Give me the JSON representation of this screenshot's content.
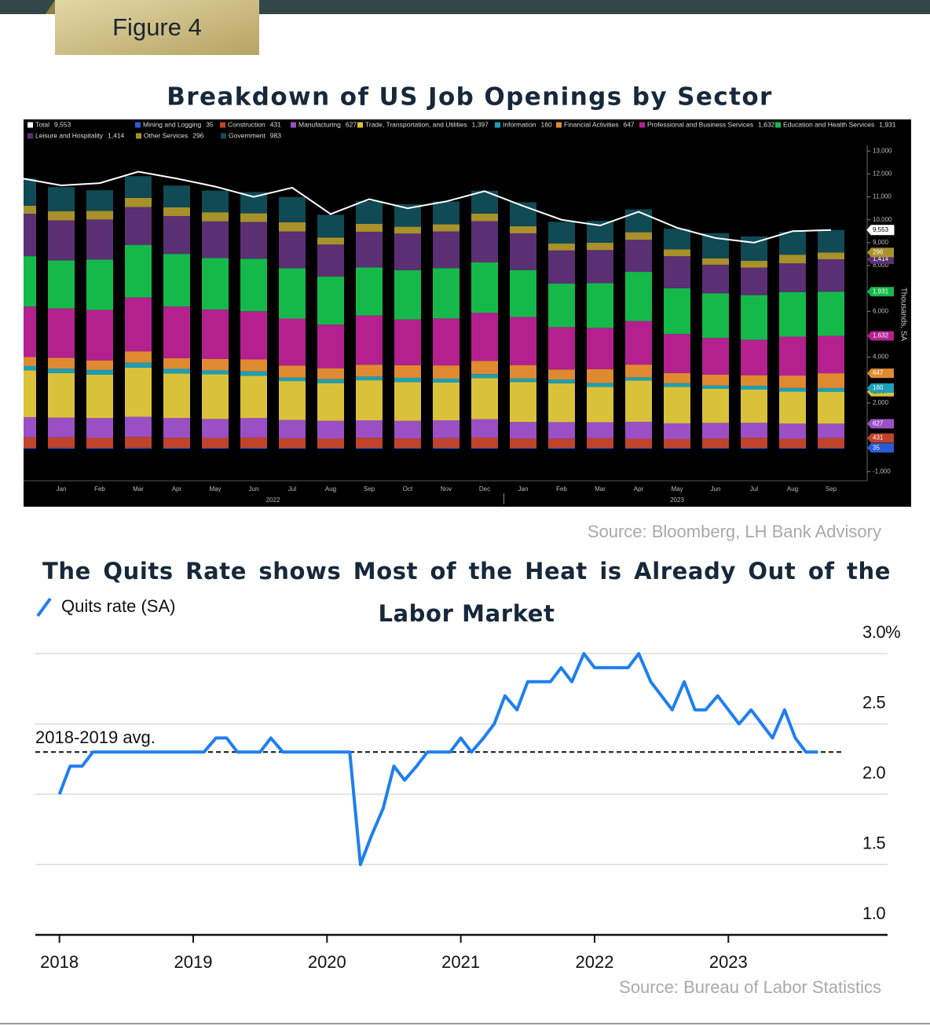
{
  "header": {
    "figure_label": "Figure 4"
  },
  "chart_data": [
    {
      "type": "bar",
      "stacked": true,
      "title": "Breakdown of US Job Openings by Sector",
      "source": "Source: Bloomberg, LH Bank Advisory",
      "y_label": "Thousands, SA",
      "categories": [
        null,
        "Jan",
        "Feb",
        "Mar",
        "Apr",
        "May",
        "Jun",
        "Jul",
        "Aug",
        "Sep",
        "Oct",
        "Nov",
        "Dec",
        "Jan",
        "Feb",
        "Mar",
        "Apr",
        "May",
        "Jun",
        "Jul",
        "Aug",
        "Sep"
      ],
      "groups": [
        {
          "label": "2022",
          "from": 1,
          "to": 12
        },
        {
          "label": "2023",
          "from": 13,
          "to": 21
        }
      ],
      "ylim": [
        -1400,
        13250
      ],
      "yticks": [
        {
          "value": 13000,
          "label": "13,000"
        },
        {
          "value": 12000,
          "label": "12,000"
        },
        {
          "value": 11000,
          "label": "11,000"
        },
        {
          "value": 10000,
          "label": "10,000"
        },
        {
          "value": 9000,
          "label": "9,000"
        },
        {
          "value": 8000,
          "label": "8,000"
        },
        {
          "value": 6000,
          "label": "6,000"
        },
        {
          "value": 4000,
          "label": "4,000"
        },
        {
          "value": 2000,
          "label": "2,000"
        },
        {
          "value": -1000,
          "label": "-1,000"
        }
      ],
      "series": [
        {
          "name": "Total",
          "type": "line",
          "color": "#ffffff",
          "last_label": "9,553",
          "values": [
            11800,
            11500,
            11600,
            12100,
            11800,
            11450,
            11000,
            11400,
            10250,
            10900,
            10500,
            10800,
            11250,
            10600,
            10000,
            9750,
            10350,
            9650,
            9200,
            9000,
            9500,
            9553
          ]
        },
        {
          "name": "Mining and Logging",
          "color": "#2a5bd7",
          "last_label": "35",
          "values": [
            40,
            45,
            40,
            45,
            40,
            38,
            40,
            35,
            38,
            40,
            36,
            40,
            38,
            35,
            40,
            38,
            35,
            38,
            36,
            40,
            35,
            35
          ]
        },
        {
          "name": "Construction",
          "color": "#c0432a",
          "last_label": "431",
          "values": [
            460,
            450,
            430,
            470,
            440,
            430,
            450,
            420,
            400,
            440,
            410,
            420,
            450,
            410,
            400,
            420,
            400,
            380,
            410,
            440,
            400,
            431
          ]
        },
        {
          "name": "Manufacturing",
          "color": "#9b4fc5",
          "last_label": "627",
          "values": [
            880,
            860,
            870,
            880,
            860,
            830,
            850,
            800,
            780,
            760,
            770,
            780,
            800,
            720,
            720,
            700,
            740,
            690,
            680,
            650,
            660,
            627
          ]
        },
        {
          "name": "Trade, Transportation, and Utilities",
          "color": "#d9c23a",
          "last_label": "1,397",
          "values": [
            2050,
            1950,
            1900,
            2150,
            1950,
            1950,
            1850,
            1700,
            1650,
            1750,
            1700,
            1650,
            1800,
            1750,
            1700,
            1550,
            1800,
            1600,
            1500,
            1450,
            1400,
            1397
          ]
        },
        {
          "name": "Information",
          "color": "#1b9fb8",
          "last_label": "160",
          "values": [
            180,
            190,
            200,
            210,
            200,
            170,
            190,
            150,
            170,
            160,
            180,
            170,
            170,
            150,
            160,
            160,
            140,
            150,
            140,
            170,
            160,
            160
          ]
        },
        {
          "name": "Financial Activities",
          "color": "#df8a30",
          "last_label": "647",
          "values": [
            400,
            480,
            420,
            500,
            470,
            510,
            520,
            530,
            480,
            520,
            550,
            580,
            580,
            590,
            440,
            610,
            560,
            450,
            470,
            460,
            540,
            647
          ]
        },
        {
          "name": "Professional and Business Services",
          "color": "#b5208f",
          "last_label": "1,632",
          "values": [
            2200,
            2150,
            2200,
            2350,
            2250,
            2150,
            2100,
            2050,
            1900,
            2150,
            2000,
            2050,
            2100,
            2100,
            1850,
            1800,
            1900,
            1700,
            1600,
            1550,
            1700,
            1632
          ]
        },
        {
          "name": "Education and Health Services",
          "color": "#14b94a",
          "last_label": "1,931",
          "values": [
            2200,
            2100,
            2200,
            2300,
            2300,
            2250,
            2300,
            2200,
            2100,
            2100,
            2150,
            2200,
            2200,
            2050,
            1900,
            1950,
            2150,
            2000,
            1950,
            1950,
            1950,
            1931
          ]
        },
        {
          "name": "Leisure and Hospitality",
          "color": "#5a2f74",
          "last_label": "1,414",
          "values": [
            1850,
            1750,
            1750,
            1650,
            1650,
            1600,
            1600,
            1600,
            1400,
            1550,
            1600,
            1600,
            1800,
            1600,
            1450,
            1450,
            1400,
            1400,
            1250,
            1200,
            1250,
            1414
          ]
        },
        {
          "name": "Other Services",
          "color": "#a8912a",
          "last_label": "296",
          "values": [
            350,
            400,
            380,
            400,
            380,
            400,
            380,
            410,
            300,
            350,
            300,
            310,
            330,
            310,
            300,
            320,
            330,
            300,
            280,
            300,
            380,
            296
          ]
        },
        {
          "name": "Government",
          "color": "#0f4a55",
          "last_label": "983",
          "values": [
            1200,
            1050,
            900,
            950,
            950,
            950,
            930,
            1100,
            1000,
            1000,
            980,
            1000,
            1000,
            1050,
            950,
            950,
            1000,
            900,
            1100,
            1060,
            1000,
            983
          ]
        }
      ]
    },
    {
      "type": "line",
      "title": "The Quits Rate shows Most of the Heat is Already Out of the Labor Market",
      "source": "Source: Bureau of Labor Statistics",
      "x": [
        2018,
        2018.08,
        2018.17,
        2018.25,
        2018.33,
        2018.42,
        2018.5,
        2018.58,
        2018.67,
        2018.75,
        2018.83,
        2018.92,
        2019,
        2019.08,
        2019.17,
        2019.25,
        2019.33,
        2019.42,
        2019.5,
        2019.58,
        2019.67,
        2019.75,
        2019.83,
        2019.92,
        2020,
        2020.08,
        2020.17,
        2020.25,
        2020.33,
        2020.42,
        2020.5,
        2020.58,
        2020.67,
        2020.75,
        2020.83,
        2020.92,
        2021,
        2021.08,
        2021.17,
        2021.25,
        2021.33,
        2021.42,
        2021.5,
        2021.58,
        2021.67,
        2021.75,
        2021.83,
        2021.92,
        2022,
        2022.08,
        2022.17,
        2022.25,
        2022.33,
        2022.42,
        2022.5,
        2022.58,
        2022.67,
        2022.75,
        2022.83,
        2022.92,
        2023,
        2023.08,
        2023.17,
        2023.25,
        2023.33,
        2023.42,
        2023.5,
        2023.58,
        2023.67
      ],
      "series": [
        {
          "name": "Quits rate (SA)",
          "color": "#1e7ff0",
          "values": [
            2.0,
            2.2,
            2.2,
            2.3,
            2.3,
            2.3,
            2.3,
            2.3,
            2.3,
            2.3,
            2.3,
            2.3,
            2.3,
            2.3,
            2.4,
            2.4,
            2.3,
            2.3,
            2.3,
            2.4,
            2.3,
            2.3,
            2.3,
            2.3,
            2.3,
            2.3,
            2.3,
            1.5,
            1.7,
            1.9,
            2.2,
            2.1,
            2.2,
            2.3,
            2.3,
            2.3,
            2.4,
            2.3,
            2.4,
            2.5,
            2.7,
            2.6,
            2.8,
            2.8,
            2.8,
            2.9,
            2.8,
            3.0,
            2.9,
            2.9,
            2.9,
            2.9,
            3.0,
            2.8,
            2.7,
            2.6,
            2.8,
            2.6,
            2.6,
            2.7,
            2.6,
            2.5,
            2.6,
            2.5,
            2.4,
            2.6,
            2.4,
            2.3,
            2.3
          ]
        }
      ],
      "xlim": [
        2017.82,
        2024.19
      ],
      "xticks": [
        2018,
        2019,
        2020,
        2021,
        2022,
        2023
      ],
      "ylim": [
        1.0,
        3.0
      ],
      "yticks": [
        {
          "value": 3,
          "label": "3.0%"
        },
        2.5,
        {
          "value": 2,
          "label": "2.0"
        },
        1.5,
        {
          "value": 1,
          "label": "1.0"
        }
      ],
      "grid": true,
      "reference_line": {
        "label": "2018-2019 avg.",
        "value": 2.3
      }
    }
  ]
}
